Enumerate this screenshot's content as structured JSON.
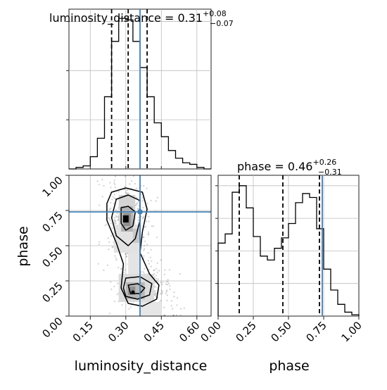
{
  "chart_data": {
    "type": "corner",
    "parameters": [
      "luminosity_distance",
      "phase"
    ],
    "truths": {
      "luminosity_distance": 0.36,
      "phase": 0.74
    },
    "truth_color": "#4682b4",
    "grid": true,
    "panels": [
      {
        "panel": "marginal",
        "parameter": "luminosity_distance",
        "title": {
          "prefix": "luminosity_distance = ",
          "value": "0.31",
          "plus": "+0.08",
          "minus": "−0.07"
        },
        "quantile_lines": [
          0.24,
          0.31,
          0.39
        ],
        "xlim": [
          0.06,
          0.66
        ],
        "ylim": [
          0,
          1.04
        ],
        "hist": {
          "edges": [
            0.06,
            0.09,
            0.12,
            0.15,
            0.18,
            0.21,
            0.24,
            0.27,
            0.3,
            0.33,
            0.36,
            0.39,
            0.42,
            0.45,
            0.48,
            0.51,
            0.54,
            0.57,
            0.6,
            0.63,
            0.66
          ],
          "values": [
            0,
            0.01,
            0.02,
            0.08,
            0.2,
            0.47,
            0.83,
            0.98,
            0.97,
            0.83,
            0.66,
            0.47,
            0.3,
            0.21,
            0.12,
            0.07,
            0.04,
            0.03,
            0.01,
            0
          ]
        }
      },
      {
        "panel": "marginal",
        "parameter": "phase",
        "title": {
          "prefix": "phase = ",
          "value": "0.46",
          "plus": "+0.26",
          "minus": "−0.31"
        },
        "quantile_lines": [
          0.15,
          0.46,
          0.72
        ],
        "xlim": [
          0,
          1
        ],
        "xticks": [
          "0.00",
          "0.25",
          "0.50",
          "0.75",
          "1.00"
        ],
        "xlabel": "phase",
        "ylim": [
          0,
          1.08
        ],
        "hist": {
          "edges": [
            0,
            0.05,
            0.1,
            0.15,
            0.2,
            0.25,
            0.3,
            0.35,
            0.4,
            0.45,
            0.5,
            0.55,
            0.6,
            0.65,
            0.7,
            0.75,
            0.8,
            0.85,
            0.9,
            0.95,
            1.0
          ],
          "values": [
            0.56,
            0.63,
            0.95,
            1.0,
            0.83,
            0.61,
            0.46,
            0.43,
            0.52,
            0.6,
            0.71,
            0.87,
            0.94,
            0.91,
            0.67,
            0.36,
            0.2,
            0.09,
            0.03,
            0.01
          ]
        }
      },
      {
        "panel": "joint",
        "x_parameter": "luminosity_distance",
        "y_parameter": "phase",
        "xlim": [
          0.06,
          0.66
        ],
        "ylim": [
          0,
          1.0
        ],
        "xticks": [
          "0.15",
          "0.30",
          "0.45",
          "0.60"
        ],
        "yticks": [
          "0.00",
          "0.25",
          "0.50",
          "0.75",
          "1.00"
        ],
        "xlabel": "luminosity_distance",
        "ylabel": "phase",
        "density_peaks": [
          {
            "x": 0.3,
            "y": 0.69,
            "weight": 1.0
          },
          {
            "x": 0.33,
            "y": 0.17,
            "weight": 0.75
          }
        ]
      }
    ]
  }
}
